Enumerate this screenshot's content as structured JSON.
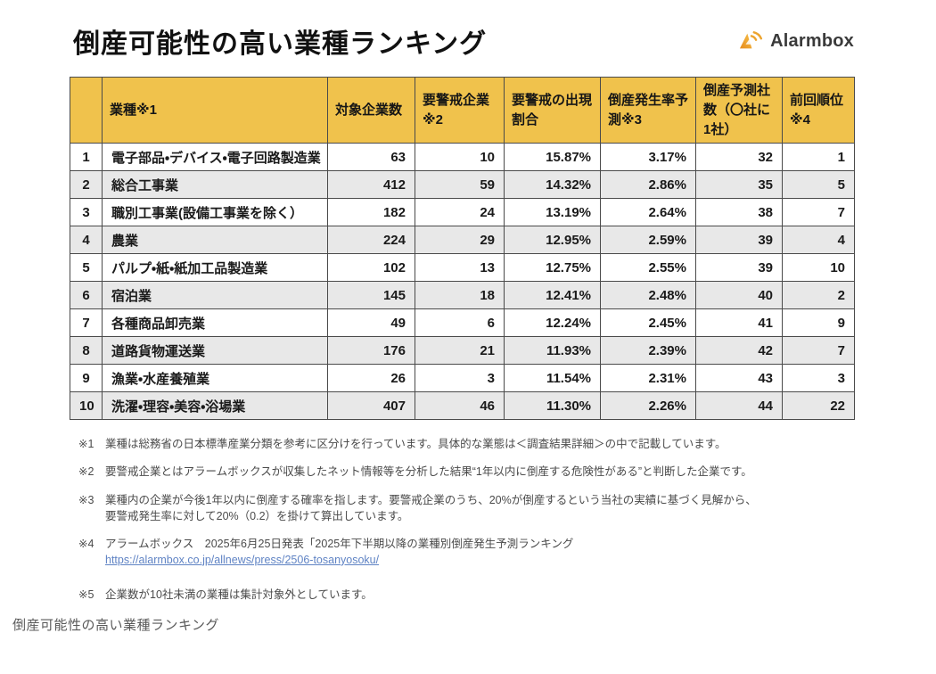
{
  "page": {
    "title": "倒産可能性の高い業種ランキング",
    "bottom_caption": "倒産可能性の高い業種ランキング"
  },
  "brand": {
    "name": "Alarmbox",
    "icon": "alarmbox-sound-wave-icon",
    "icon_color_dark": "#e78b1b",
    "icon_color_light": "#f6c14a"
  },
  "table": {
    "header_bg": "#f0c24c",
    "stripe_bg": "#e8e8e8",
    "border_color": "#4a4a4a",
    "columns": [
      "",
      "業種※1",
      "対象企業数",
      "要警戒企業※2",
      "要警戒の出現割合",
      "倒産発生率予測※3",
      "倒産予測社数（〇社に1社）",
      "前回順位※4"
    ],
    "rows": [
      [
        "1",
        "電子部品・デバイス・電子回路製造業",
        "63",
        "10",
        "15.87%",
        "3.17%",
        "32",
        "1"
      ],
      [
        "2",
        "総合工事業",
        "412",
        "59",
        "14.32%",
        "2.86%",
        "35",
        "5"
      ],
      [
        "3",
        "職別工事業(設備工事業を除く）",
        "182",
        "24",
        "13.19%",
        "2.64%",
        "38",
        "7"
      ],
      [
        "4",
        "農業",
        "224",
        "29",
        "12.95%",
        "2.59%",
        "39",
        "4"
      ],
      [
        "5",
        "パルプ・紙・紙加工品製造業",
        "102",
        "13",
        "12.75%",
        "2.55%",
        "39",
        "10"
      ],
      [
        "6",
        "宿泊業",
        "145",
        "18",
        "12.41%",
        "2.48%",
        "40",
        "2"
      ],
      [
        "7",
        "各種商品卸売業",
        "49",
        "6",
        "12.24%",
        "2.45%",
        "41",
        "9"
      ],
      [
        "8",
        "道路貨物運送業",
        "176",
        "21",
        "11.93%",
        "2.39%",
        "42",
        "7"
      ],
      [
        "9",
        "漁業・水産養殖業",
        "26",
        "3",
        "11.54%",
        "2.31%",
        "43",
        "3"
      ],
      [
        "10",
        "洗濯・理容・美容・浴場業",
        "407",
        "46",
        "11.30%",
        "2.26%",
        "44",
        "22"
      ]
    ]
  },
  "footnotes": [
    {
      "label": "※1",
      "lines": [
        "業種は総務省の日本標準産業分類を参考に区分けを行っています。具体的な業態は＜調査結果詳細＞の中で記載しています。"
      ]
    },
    {
      "label": "※2",
      "lines": [
        "要警戒企業とはアラームボックスが収集したネット情報等を分析した結果“1年以内に倒産する危険性がある”と判断した企業です。"
      ]
    },
    {
      "label": "※3",
      "lines": [
        "業種内の企業が今後1年以内に倒産する確率を指します。要警戒企業のうち、20%が倒産するという当社の実績に基づく見解から、",
        "要警戒発生率に対して20%（0.2）を掛けて算出しています。"
      ]
    },
    {
      "label": "※4",
      "lines": [
        "アラームボックス　2025年6月25日発表「2025年下半期以降の業種別倒産発生予測ランキング"
      ],
      "link": "https://alarmbox.co.jp/allnews/press/2506-tosanyosoku/"
    },
    {
      "label": "※5",
      "lines": [
        "企業数が10社未満の業種は集計対象外としています。"
      ]
    }
  ]
}
